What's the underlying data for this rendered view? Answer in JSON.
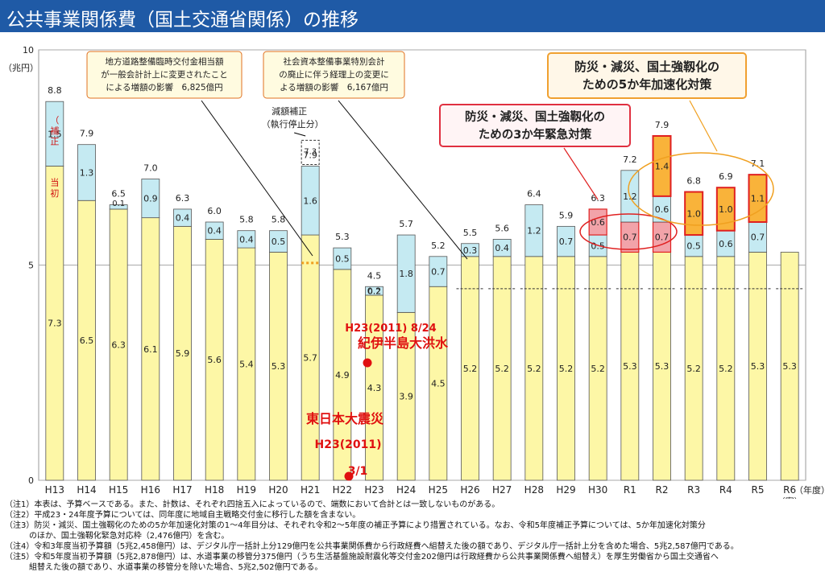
{
  "title": "公共事業関係費（国土交通省関係）の推移",
  "chart_data": {
    "type": "bar",
    "stacked": true,
    "unit_label": "（兆円）",
    "ylim": [
      0,
      10
    ],
    "yticks": [
      0,
      5,
      10
    ],
    "x_suffix": "（年度）",
    "categories": [
      "H13",
      "H14",
      "H15",
      "H16",
      "H17",
      "H18",
      "H19",
      "H20",
      "H21",
      "H22",
      "H23",
      "H24",
      "H25",
      "H26",
      "H27",
      "H28",
      "H29",
      "H30",
      "R1",
      "R2",
      "R3",
      "R4",
      "R5",
      "R6"
    ],
    "category_sublabels": {
      "R6": "（案）"
    },
    "totals": [
      "8.8",
      "7.9",
      "6.5",
      "7.0",
      "6.3",
      "6.0",
      "5.8",
      "5.8",
      "7.9",
      "5.3",
      "4.5",
      "5.7",
      "5.2",
      "5.5",
      "5.6",
      "6.4",
      "5.9",
      "6.3",
      "7.2",
      "7.9",
      "6.8",
      "6.9",
      "7.1",
      ""
    ],
    "series": [
      {
        "name": "当初",
        "color": "#fdf7a6",
        "values": [
          7.3,
          6.5,
          6.3,
          6.1,
          5.9,
          5.6,
          5.4,
          5.3,
          5.7,
          4.9,
          4.3,
          3.9,
          4.5,
          5.2,
          5.2,
          5.2,
          5.2,
          5.2,
          5.3,
          5.3,
          5.2,
          5.2,
          5.3,
          5.3
        ]
      },
      {
        "name": "3か年緊急対策",
        "color": "#f2a3a9",
        "values": [
          0,
          0,
          0,
          0,
          0,
          0,
          0,
          0,
          0,
          0,
          0,
          0,
          0,
          0,
          0,
          0,
          0,
          0,
          0.7,
          0.7,
          0,
          0,
          0,
          0
        ]
      },
      {
        "name": "補正",
        "color": "#c5eaf2",
        "values": [
          1.5,
          1.3,
          0.1,
          0.9,
          0.4,
          0.4,
          0.4,
          0.5,
          1.6,
          0.5,
          0.2,
          1.8,
          0.7,
          0.3,
          0.4,
          1.2,
          0.7,
          0.5,
          1.2,
          0.6,
          0.5,
          0.6,
          0.7,
          0
        ]
      },
      {
        "name": "3か年緊急対策（補正）",
        "color": "#f2a3a9",
        "values": [
          0,
          0,
          0,
          0,
          0,
          0,
          0,
          0,
          0,
          0,
          0,
          0,
          0,
          0,
          0,
          0,
          0,
          0.6,
          0,
          0,
          0,
          0,
          0,
          0
        ]
      },
      {
        "name": "5か年加速化対策",
        "color": "#f9b33a",
        "values": [
          0,
          0,
          0,
          0,
          0,
          0,
          0,
          0,
          0,
          0,
          0,
          0,
          0,
          0,
          0,
          0,
          0,
          0,
          0,
          1.4,
          1.0,
          1.0,
          1.1,
          0
        ]
      }
    ],
    "h21_genkaku": {
      "label": "減額補正\n（執行停止分）",
      "value": "7.3"
    },
    "h23_extra_label": "0.2",
    "bar_side_labels": {
      "hosei": "（補正）",
      "toshho": "（当初）"
    },
    "dashed_baseline_from": "H26",
    "callouts": [
      {
        "id": "chiho",
        "lines": [
          "地方道路整備臨時交付金相当額",
          "が一般会計計上に変更されたこと",
          "による増額の影響　6,825億円"
        ]
      },
      {
        "id": "shakai",
        "lines": [
          "社会資本整備事業特別会計",
          "の廃止に伴う経理上の変更に",
          "よる増額の影響　6,167億円"
        ]
      },
      {
        "id": "3kanen",
        "lines": [
          "防災・減災、国土強靱化の",
          "ための3か年緊急対策"
        ]
      },
      {
        "id": "5kanen",
        "lines": [
          "防災・減災、国土強靱化の",
          "ための5か年加速化対策"
        ]
      }
    ],
    "handwriting": {
      "kii": "H23(2011) 8/24",
      "kii2": "紀伊半島大洪水",
      "higashi": "東日本大震災",
      "higashi2": "H23(2011)",
      "higashi3": "3/1"
    }
  },
  "notes": [
    "（注1）本表は、予算ベースである。また、計数は、それぞれ四捨五入によっているので、端数において合計とは一致しないものがある。",
    "（注2）平成23・24年度予算については、同年度に地域自主戦略交付金に移行した額を含まない。",
    "（注3）防災・減災、国土強靱化のための5か年加速化対策の1～4年目分は、それぞれ令和2～5年度の補正予算により措置されている。なお、令和5年度補正予算については、5か年加速化対策分",
    "　　　のほか、国土強靱化緊急対応枠（2,476億円）を含む。",
    "（注4）令和3年度当初予算額（5兆2,458億円）は、デジタル庁一括計上分129億円を公共事業関係費から行政経費へ組替えた後の額であり、デジタル庁一括計上分を含めた場合、5兆2,587億円である。",
    "（注5）令和5年度当初予算額（5兆2,878億円）は、水道事業の移管分375億円（うち生活基盤施設耐震化等交付金202億円は行政経費から公共事業関係費へ組替え）を厚生労働省から国土交通省へ",
    "　　　組替えた後の額であり、水道事業の移管分を除いた場合、5兆2,502億円である。"
  ]
}
